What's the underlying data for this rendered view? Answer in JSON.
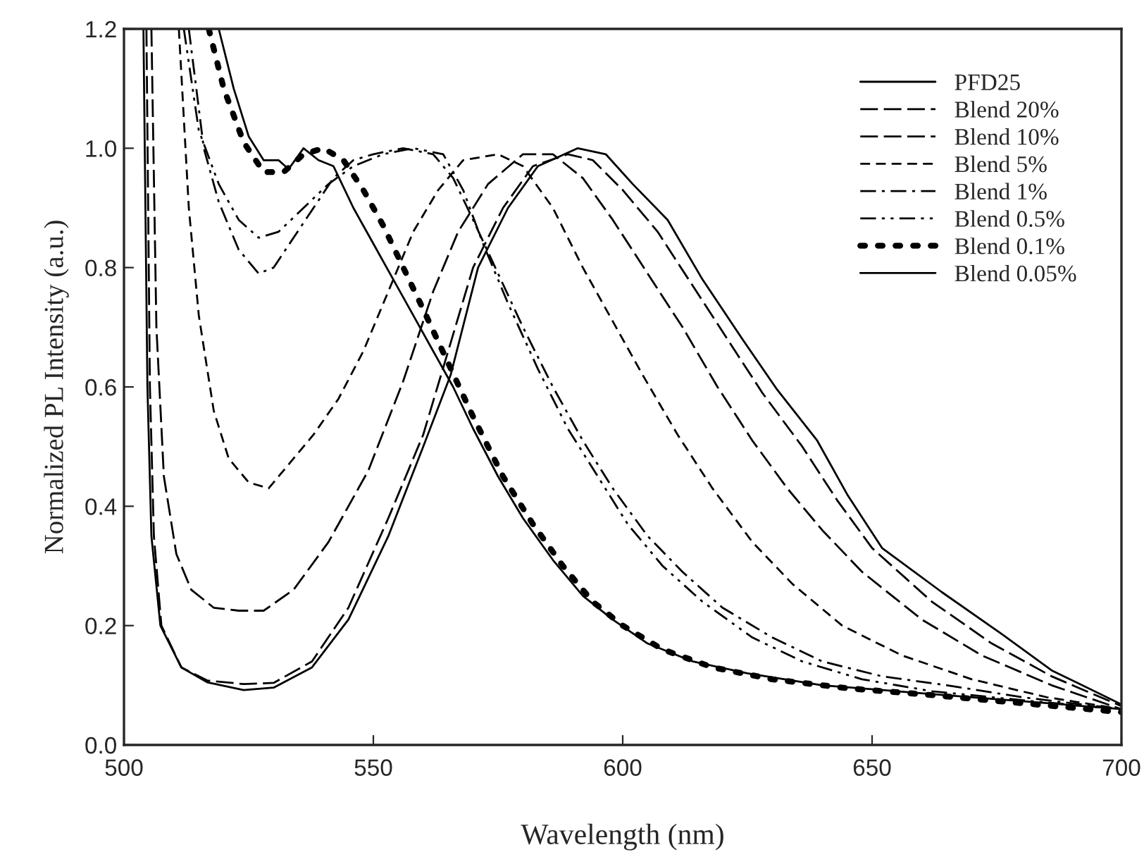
{
  "chart_data": {
    "type": "line",
    "xlabel": "Wavelength (nm)",
    "ylabel": "Normalized PL Intensity (a.u.)",
    "xlim": [
      500,
      700
    ],
    "ylim": [
      0,
      1.2
    ],
    "xticks": [
      500,
      550,
      600,
      650,
      700
    ],
    "yticks": [
      {
        "value": 0,
        "label": "0.0"
      },
      {
        "value": 0.2,
        "label": "0.2"
      },
      {
        "value": 0.4,
        "label": "0.4"
      },
      {
        "value": 0.6,
        "label": "0.6"
      },
      {
        "value": 0.8,
        "label": "0.8"
      },
      {
        "value": 1.0,
        "label": "1.0"
      },
      {
        "value": 1.2,
        "label": "1.2"
      }
    ],
    "grid": false,
    "legend": "top right",
    "marker": "none",
    "series": [
      {
        "name": "PFD25",
        "color": "#000000",
        "line_style": "solid",
        "x": [
          503.9,
          504.7,
          505.5,
          507.3,
          511.5,
          516.7,
          524,
          530,
          537.7,
          545,
          553,
          560,
          565.5,
          571,
          577,
          583,
          591,
          596.6,
          602,
          609,
          616,
          624,
          631,
          639,
          645,
          652,
          664,
          676,
          686,
          700
        ],
        "values": [
          1.2,
          0.6,
          0.35,
          0.2,
          0.13,
          0.105,
          0.092,
          0.096,
          0.13,
          0.21,
          0.35,
          0.5,
          0.62,
          0.8,
          0.9,
          0.97,
          1.0,
          0.99,
          0.94,
          0.88,
          0.78,
          0.68,
          0.595,
          0.51,
          0.42,
          0.33,
          0.256,
          0.186,
          0.125,
          0.068
        ]
      },
      {
        "name": "Blend 20%",
        "color": "#000000",
        "line_style": "long dashed",
        "x": [
          504.5,
          505.2,
          506,
          507.5,
          511.5,
          516.7,
          524,
          530,
          537.7,
          545,
          553,
          560,
          565,
          570,
          576,
          582,
          589,
          594,
          600,
          607,
          614,
          621,
          628,
          636,
          643,
          650,
          662,
          674,
          686,
          700
        ],
        "values": [
          1.2,
          0.6,
          0.35,
          0.2,
          0.13,
          0.108,
          0.102,
          0.104,
          0.14,
          0.23,
          0.38,
          0.52,
          0.66,
          0.8,
          0.9,
          0.97,
          0.99,
          0.98,
          0.93,
          0.86,
          0.77,
          0.68,
          0.59,
          0.5,
          0.41,
          0.33,
          0.24,
          0.17,
          0.115,
          0.065
        ]
      },
      {
        "name": "Blend 10%",
        "color": "#000000",
        "line_style": "long dashed",
        "x": [
          505.5,
          506.5,
          508,
          510.5,
          513.5,
          518,
          523,
          528,
          534,
          541,
          549,
          556,
          562,
          567,
          573,
          580,
          586,
          592,
          598,
          605,
          612,
          619,
          626,
          633,
          640,
          648,
          660,
          672,
          686,
          700
        ],
        "values": [
          1.2,
          0.7,
          0.45,
          0.32,
          0.26,
          0.23,
          0.225,
          0.225,
          0.26,
          0.34,
          0.46,
          0.61,
          0.76,
          0.86,
          0.94,
          0.99,
          0.99,
          0.95,
          0.88,
          0.79,
          0.7,
          0.6,
          0.51,
          0.43,
          0.36,
          0.29,
          0.21,
          0.15,
          0.1,
          0.06
        ]
      },
      {
        "name": "Blend 5%",
        "color": "#000000",
        "line_style": "dashed",
        "x": [
          511,
          513,
          515,
          518,
          521,
          525,
          529,
          533,
          538,
          543,
          548,
          553,
          558,
          563,
          568,
          575,
          580,
          586,
          592,
          598,
          604,
          611,
          618,
          626,
          634,
          644,
          656,
          670,
          685,
          700
        ],
        "values": [
          1.2,
          0.9,
          0.72,
          0.56,
          0.48,
          0.44,
          0.43,
          0.47,
          0.52,
          0.58,
          0.66,
          0.76,
          0.86,
          0.93,
          0.98,
          0.99,
          0.97,
          0.9,
          0.8,
          0.71,
          0.62,
          0.52,
          0.43,
          0.34,
          0.27,
          0.2,
          0.15,
          0.11,
          0.08,
          0.06
        ]
      },
      {
        "name": "Blend 1%",
        "color": "#000000",
        "line_style": "dashdot",
        "x": [
          513,
          516,
          519,
          523,
          527,
          530,
          534,
          538,
          542,
          546,
          550,
          556,
          562,
          566,
          570,
          575,
          580,
          586,
          592,
          598,
          605,
          612,
          620,
          630,
          640,
          652,
          665,
          680,
          700
        ],
        "values": [
          1.2,
          1.0,
          0.91,
          0.83,
          0.79,
          0.8,
          0.85,
          0.9,
          0.95,
          0.98,
          0.99,
          1.0,
          0.99,
          0.95,
          0.88,
          0.79,
          0.7,
          0.6,
          0.51,
          0.43,
          0.35,
          0.29,
          0.23,
          0.18,
          0.14,
          0.115,
          0.1,
          0.08,
          0.06
        ]
      },
      {
        "name": "Blend 0.5%",
        "color": "#000000",
        "line_style": "dashdotdot",
        "x": [
          512,
          515,
          519,
          523,
          527,
          531,
          536,
          541,
          546,
          552,
          558,
          564,
          568,
          572,
          577,
          583,
          589,
          595,
          601,
          608,
          616,
          626,
          636,
          648,
          662,
          680,
          700
        ],
        "values": [
          1.2,
          1.03,
          0.94,
          0.88,
          0.85,
          0.86,
          0.9,
          0.94,
          0.97,
          0.99,
          1.0,
          0.99,
          0.93,
          0.84,
          0.74,
          0.63,
          0.53,
          0.45,
          0.37,
          0.3,
          0.24,
          0.18,
          0.14,
          0.11,
          0.09,
          0.075,
          0.06
        ]
      },
      {
        "name": "Blend 0.1%",
        "color": "#000000",
        "line_style": "dotted",
        "x": [
          517,
          520,
          524,
          528,
          532,
          536,
          540,
          544,
          548,
          552,
          556,
          560,
          565,
          570,
          576,
          582,
          588,
          594,
          600,
          608,
          618,
          630,
          645,
          660,
          680,
          700
        ],
        "values": [
          1.2,
          1.1,
          1.01,
          0.96,
          0.96,
          0.99,
          1.0,
          0.98,
          0.93,
          0.87,
          0.8,
          0.73,
          0.64,
          0.55,
          0.45,
          0.37,
          0.3,
          0.24,
          0.2,
          0.16,
          0.13,
          0.11,
          0.095,
          0.085,
          0.07,
          0.055
        ]
      },
      {
        "name": "Blend 0.05%",
        "color": "#000000",
        "line_style": "solid",
        "x": [
          519,
          522,
          525,
          528,
          531,
          533,
          536,
          539,
          542,
          546,
          550,
          554,
          558,
          562,
          566,
          570,
          575,
          580,
          586,
          592,
          598,
          605,
          614,
          625,
          640,
          655,
          670,
          685,
          700
        ],
        "values": [
          1.2,
          1.1,
          1.02,
          0.98,
          0.98,
          0.965,
          1.0,
          0.98,
          0.97,
          0.9,
          0.84,
          0.78,
          0.72,
          0.66,
          0.6,
          0.53,
          0.45,
          0.38,
          0.31,
          0.25,
          0.21,
          0.17,
          0.14,
          0.12,
          0.1,
          0.09,
          0.08,
          0.07,
          0.06
        ]
      }
    ]
  }
}
